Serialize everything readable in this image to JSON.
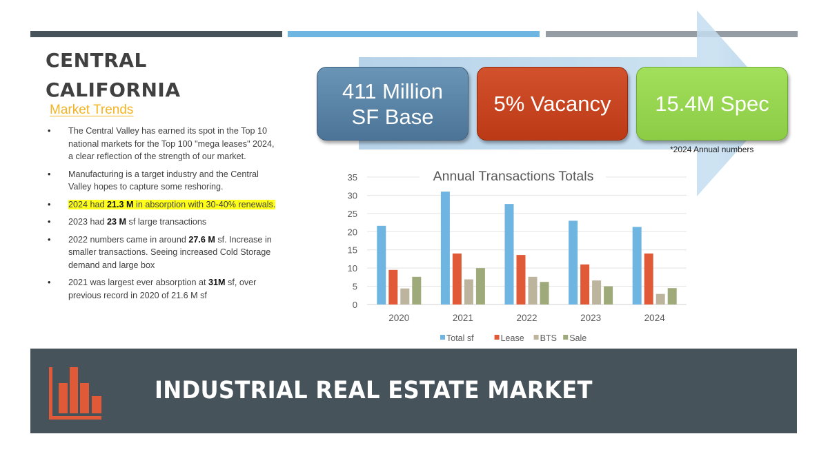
{
  "header": {
    "title_line1": "CENTRAL",
    "title_line2": "CALIFORNIA",
    "subtitle": "Market Trends"
  },
  "bullets": [
    {
      "text": "The Central Valley has earned its spot in the Top 10 national markets for the Top 100 \"mega leases\" 2024, a clear reflection of the strength of our market."
    },
    {
      "text": "Manufacturing is a target industry and the Central Valley hopes to capture some reshoring."
    },
    {
      "pre": "2024 had ",
      "bold": "21.3 M",
      "post": " in absorption with 30-40% renewals.",
      "highlight": true
    },
    {
      "pre": "2023 had ",
      "bold": "23 M",
      "post": " sf large transactions"
    },
    {
      "pre": "2022 numbers came in around ",
      "bold": "27.6 M",
      "post": " sf. Increase in smaller transactions. Seeing increased Cold Storage demand and large box"
    },
    {
      "pre": "2021 was largest ever absorption at ",
      "bold": "31M",
      "post": " sf, over previous record in 2020 of 21.6 M sf"
    }
  ],
  "kpis": [
    {
      "line1": "411 Million",
      "line2": "SF Base",
      "color": "#5a85a8"
    },
    {
      "line1": "5% Vacancy",
      "line2": "",
      "color": "#c7441f"
    },
    {
      "line1": "15.4M Spec",
      "line2": "",
      "color": "#97d651"
    }
  ],
  "kpi_footnote": "*2024 Annual numbers",
  "banner": {
    "title": "INDUSTRIAL REAL ESTATE MARKET",
    "icon": "bar-chart-icon",
    "icon_color": "#e05a38",
    "background": "#47535a"
  },
  "colors": {
    "dark_bar": "#47535a",
    "blue_bar": "#6fb5e1",
    "gray_bar": "#959ca3",
    "subtitle": "#f4b321",
    "highlight": "#ffff1a"
  },
  "chart_data": {
    "type": "bar",
    "title": "Annual Transactions Totals",
    "xlabel": "",
    "ylabel": "",
    "categories": [
      "2020",
      "2021",
      "2022",
      "2023",
      "2024"
    ],
    "series": [
      {
        "name": "Total sf",
        "color": "#6fb5e1",
        "values": [
          21.6,
          31.0,
          27.6,
          23.0,
          21.3
        ]
      },
      {
        "name": "Lease",
        "color": "#e05a38",
        "values": [
          9.5,
          14.0,
          13.6,
          11.0,
          14.0
        ]
      },
      {
        "name": "BTS",
        "color": "#bcb49c",
        "values": [
          4.4,
          6.9,
          7.6,
          6.6,
          2.9
        ]
      },
      {
        "name": "Sale",
        "color": "#9eaa7a",
        "values": [
          7.6,
          10.0,
          6.2,
          5.0,
          4.5
        ]
      }
    ],
    "ylim": [
      0,
      35
    ],
    "yticks": [
      0,
      5,
      10,
      15,
      20,
      25,
      30,
      35
    ],
    "grid": true,
    "legend_position": "bottom"
  }
}
